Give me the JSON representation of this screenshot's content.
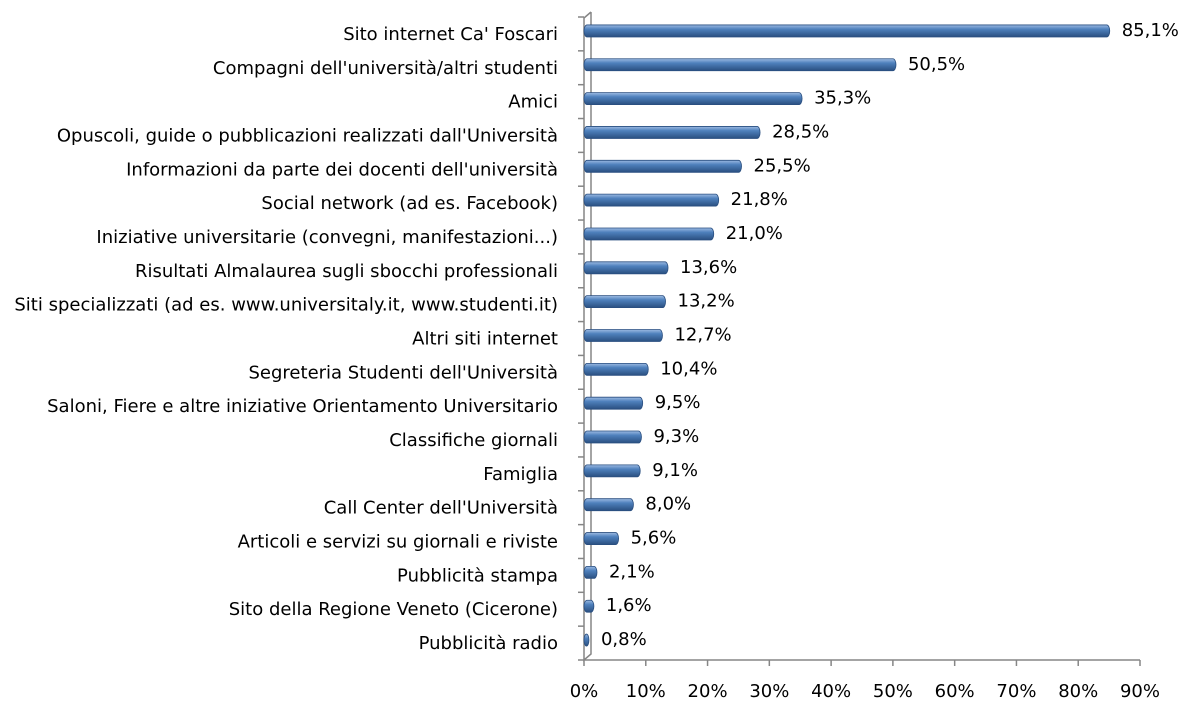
{
  "chart_data": {
    "type": "bar",
    "orientation": "horizontal",
    "categories": [
      "Sito internet Ca' Foscari",
      "Compagni dell'università/altri studenti",
      "Amici",
      "Opuscoli, guide o pubblicazioni realizzati dall'Università",
      "Informazioni da parte dei docenti dell'università",
      "Social network (ad es. Facebook)",
      "Iniziative universitarie (convegni, manifestazioni...)",
      "Risultati Almalaurea sugli sbocchi professionali",
      "Siti specializzati (ad es. www.universitaly.it, www.studenti.it)",
      "Altri siti internet",
      "Segreteria Studenti dell'Università",
      "Saloni, Fiere e altre iniziative Orientamento Universitario",
      "Classifiche giornali",
      "Famiglia",
      "Call Center dell'Università",
      "Articoli e servizi su giornali e riviste",
      "Pubblicità stampa",
      "Sito della Regione Veneto (Cicerone)",
      "Pubblicità radio"
    ],
    "values": [
      85.1,
      50.5,
      35.3,
      28.5,
      25.5,
      21.8,
      21.0,
      13.6,
      13.2,
      12.7,
      10.4,
      9.5,
      9.3,
      9.1,
      8.0,
      5.6,
      2.1,
      1.6,
      0.8
    ],
    "value_labels": [
      "85,1%",
      "50,5%",
      "35,3%",
      "28,5%",
      "25,5%",
      "21,8%",
      "21,0%",
      "13,6%",
      "13,2%",
      "12,7%",
      "10,4%",
      "9,5%",
      "9,3%",
      "9,1%",
      "8,0%",
      "5,6%",
      "2,1%",
      "1,6%",
      "0,8%"
    ],
    "color": "#4f81bd",
    "xlim": [
      0,
      90
    ],
    "xticks": [
      {
        "value": 0,
        "label": "0%"
      },
      {
        "value": 10,
        "label": "10%"
      },
      {
        "value": 20,
        "label": "20%"
      },
      {
        "value": 30,
        "label": "30%"
      },
      {
        "value": 40,
        "label": "40%"
      },
      {
        "value": 50,
        "label": "50%"
      },
      {
        "value": 60,
        "label": "60%"
      },
      {
        "value": 70,
        "label": "70%"
      },
      {
        "value": 80,
        "label": "80%"
      },
      {
        "value": 90,
        "label": "90%"
      }
    ],
    "grid": false
  }
}
